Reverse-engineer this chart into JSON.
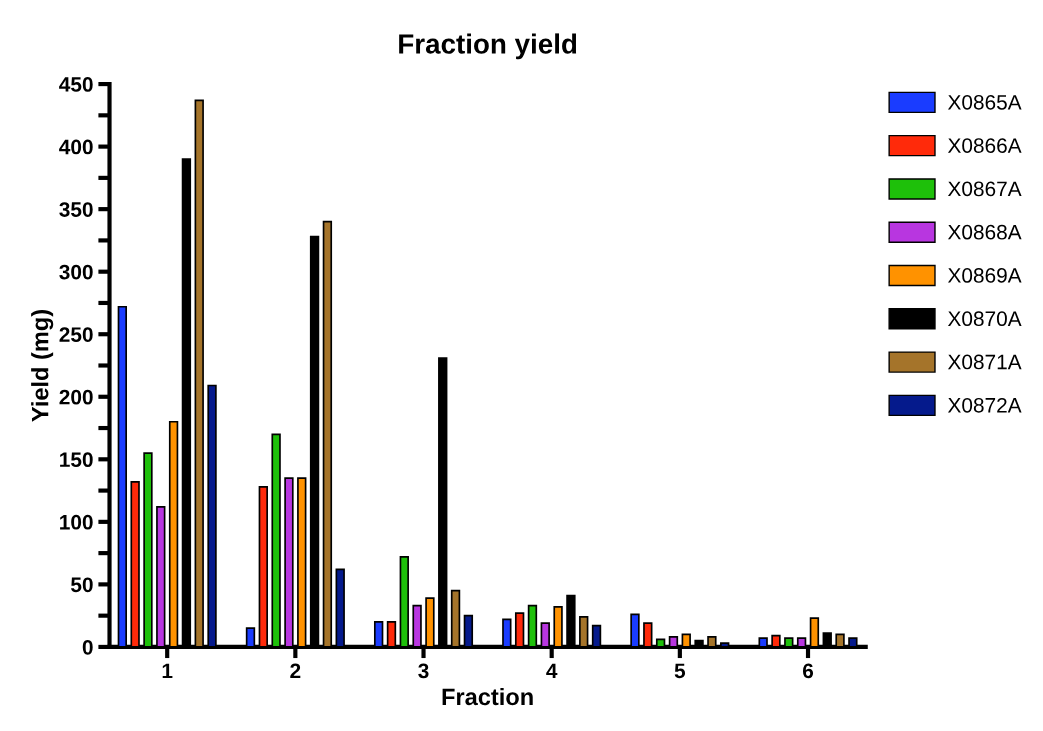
{
  "chart_data": {
    "type": "bar",
    "title": "Fraction yield",
    "xlabel": "Fraction",
    "ylabel": "Yield (mg)",
    "categories": [
      "1",
      "2",
      "3",
      "4",
      "5",
      "6"
    ],
    "series": [
      {
        "name": "X0865A",
        "color": "#1a3cff",
        "values": [
          272,
          15,
          20,
          22,
          26,
          7
        ]
      },
      {
        "name": "X0866A",
        "color": "#ff2a0a",
        "values": [
          132,
          128,
          20,
          27,
          19,
          9
        ]
      },
      {
        "name": "X0867A",
        "color": "#1ec00a",
        "values": [
          155,
          170,
          72,
          33,
          6,
          7
        ]
      },
      {
        "name": "X0868A",
        "color": "#b836e0",
        "values": [
          112,
          135,
          33,
          19,
          8,
          7
        ]
      },
      {
        "name": "X0869A",
        "color": "#ff9200",
        "values": [
          180,
          135,
          39,
          32,
          10,
          23
        ]
      },
      {
        "name": "X0870A",
        "color": "#000000",
        "values": [
          390,
          328,
          231,
          41,
          5,
          11
        ]
      },
      {
        "name": "X0871A",
        "color": "#a5742a",
        "values": [
          437,
          340,
          45,
          24,
          8,
          10
        ]
      },
      {
        "name": "X0872A",
        "color": "#051a8c",
        "values": [
          209,
          62,
          25,
          17,
          3,
          7
        ]
      }
    ],
    "ylim": [
      0,
      450
    ],
    "yticks": [
      0,
      {
        "value": 25,
        "label": null
      },
      50,
      {
        "value": 75,
        "label": null
      },
      100,
      {
        "value": 125,
        "label": null
      },
      150,
      {
        "value": 175,
        "label": null
      },
      200,
      {
        "value": 225,
        "label": null
      },
      250,
      {
        "value": 275,
        "label": null
      },
      300,
      {
        "value": 325,
        "label": null
      },
      350,
      {
        "value": 375,
        "label": null
      },
      400,
      {
        "value": 425,
        "label": null
      },
      450
    ],
    "grid": false,
    "legend": "right"
  }
}
